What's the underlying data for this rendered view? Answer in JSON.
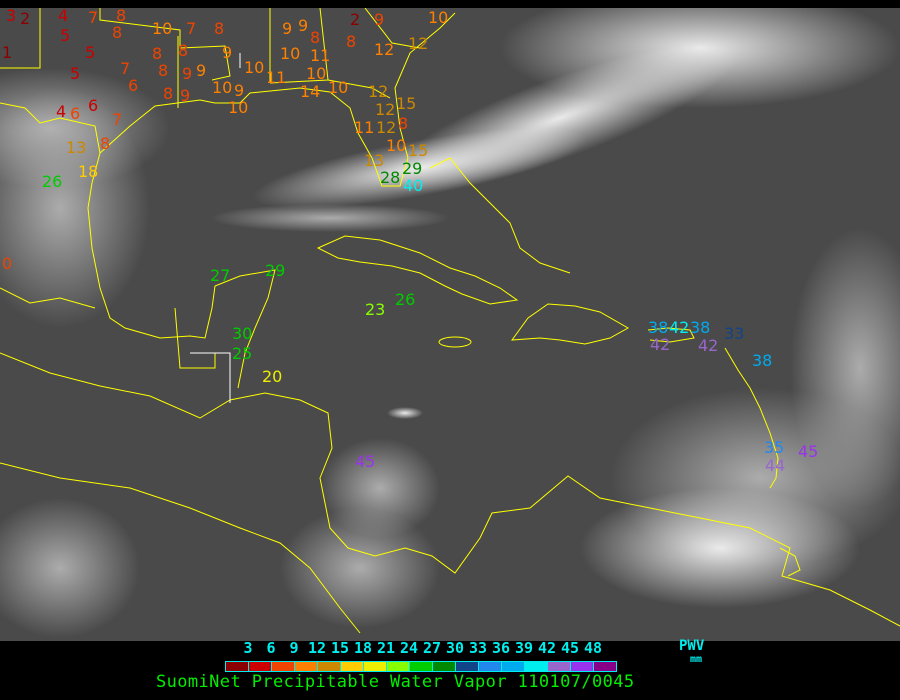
{
  "title": "SuomiNet Precipitable Water Vapor 110107/0045",
  "legend": {
    "unit_name": "PWV",
    "unit": "mm",
    "ticks": [
      "3",
      "6",
      "9",
      "12",
      "15",
      "18",
      "21",
      "24",
      "27",
      "30",
      "33",
      "36",
      "39",
      "42",
      "45",
      "48"
    ],
    "colors": [
      "#8b0000",
      "#cc0000",
      "#ee4400",
      "#ff8000",
      "#cc8800",
      "#ffcc00",
      "#eeee00",
      "#88ff00",
      "#00cc00",
      "#008800",
      "#114488",
      "#2288ee",
      "#00aaee",
      "#00eeee",
      "#9966cc",
      "#9933ee",
      "#880088"
    ]
  },
  "colors": {
    "coastline": "#ffff00",
    "border_white": "#ffffff",
    "background": "#4a4a4a"
  },
  "stations": [
    "3",
    "2",
    "4",
    "7",
    "8",
    "5",
    "5",
    "1",
    "5",
    "7",
    "6",
    "10",
    "7",
    "8",
    "8",
    "8",
    "8",
    "8",
    "9",
    "9",
    "8",
    "9",
    "10",
    "9",
    "10",
    "10",
    "9",
    "9",
    "9",
    "8",
    "10",
    "11",
    "10",
    "11",
    "14",
    "10",
    "2",
    "9",
    "8",
    "12",
    "12",
    "12",
    "12",
    "12",
    "15",
    "11",
    "8",
    "10",
    "15",
    "13",
    "28",
    "29",
    "40",
    "10",
    "4",
    "6",
    "6",
    "7",
    "8",
    "13",
    "18",
    "26",
    "0",
    "27",
    "29",
    "30",
    "25",
    "20",
    "23",
    "26",
    "45",
    "38",
    "42",
    "42",
    "38",
    "42",
    "33",
    "38",
    "35",
    "45",
    "44"
  ],
  "station_colors": [
    "#cc0000",
    "#8b0000",
    "#cc0000",
    "#ee4400",
    "#ee4400",
    "#cc0000",
    "#cc0000",
    "#8b0000",
    "#cc0000",
    "#ee4400",
    "#ee4400",
    "#ff8000",
    "#ee4400",
    "#ee4400",
    "#ee4400",
    "#ee4400",
    "#ee4400",
    "#ee4400",
    "#ee4400",
    "#ff8000",
    "#ee4400",
    "#ee4400",
    "#ff8000",
    "#ff8000",
    "#ff8000",
    "#ff8000",
    "#ff8000",
    "#ff8000",
    "#ff8000",
    "#ee4400",
    "#ff8000",
    "#ff8000",
    "#ff8000",
    "#ff8000",
    "#ff8000",
    "#ff8000",
    "#8b0000",
    "#ee4400",
    "#ee4400",
    "#ff8000",
    "#cc8800",
    "#cc8800",
    "#cc8800",
    "#cc8800",
    "#cc8800",
    "#ff8000",
    "#ee4400",
    "#ff8000",
    "#cc8800",
    "#cc8800",
    "#008800",
    "#008800",
    "#00eeee",
    "#ff8000",
    "#cc0000",
    "#ee4400",
    "#cc0000",
    "#ee4400",
    "#ee4400",
    "#cc8800",
    "#ffcc00",
    "#00cc00",
    "#ee4400",
    "#00cc00",
    "#00cc00",
    "#00cc00",
    "#00cc00",
    "#eeee00",
    "#88ff00",
    "#00cc00",
    "#9933ee",
    "#00aaee",
    "#9966cc",
    "#00eeee",
    "#00aaee",
    "#9966cc",
    "#114488",
    "#00aaee",
    "#2288ee",
    "#9933ee",
    "#9966cc"
  ]
}
